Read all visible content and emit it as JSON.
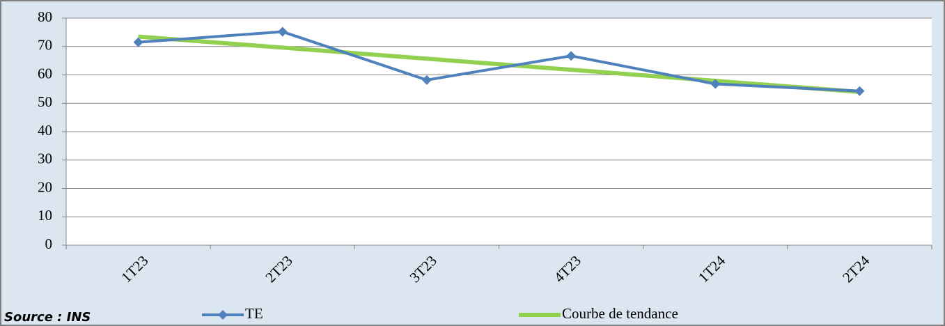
{
  "chart_data": {
    "type": "line",
    "categories": [
      "1T23",
      "2T23",
      "3T23",
      "4T23",
      "1T24",
      "2T24"
    ],
    "series": [
      {
        "name": "TE",
        "color": "#4f81bd",
        "marker": "diamond",
        "values": [
          71.5,
          75.2,
          58.2,
          66.7,
          56.8,
          54.3
        ]
      },
      {
        "name": "Courbe de tendance",
        "color": "#92d050",
        "values": [
          73.5,
          69.6,
          65.7,
          61.8,
          57.9,
          54.0
        ]
      }
    ],
    "ylim": [
      0,
      80
    ],
    "yticks": [
      0,
      10,
      20,
      30,
      40,
      50,
      60,
      70,
      80
    ],
    "grid": true,
    "legend": "bottom",
    "source": "Source : INS"
  }
}
